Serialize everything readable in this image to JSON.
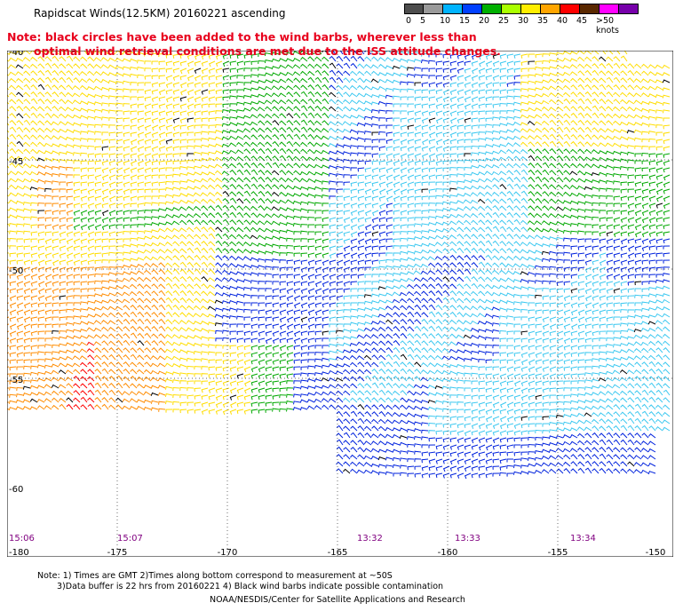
{
  "title": "Rapidscat Winds(12.5KM) 20160221 ascending",
  "note": {
    "line1": "Note: black circles have been added to the wind barbs, wherever less than",
    "line2": "optimal wind retrieval conditions are met due to the ISS attitude changes."
  },
  "legend": {
    "unit": "knots",
    "labels": [
      "0",
      "5",
      "10",
      "15",
      "20",
      "25",
      "30",
      "35",
      "40",
      "45",
      ">50 knots"
    ],
    "colors": [
      "#4d4d4d",
      "#9a9a9a",
      "#00b4ff",
      "#0040ff",
      "#00b000",
      "#aaff00",
      "#ffee00",
      "#ffa500",
      "#ff0000",
      "#5a2800",
      "#ff00ff",
      "#7700aa"
    ]
  },
  "map": {
    "lon_labels": [
      "-180",
      "-175",
      "-170",
      "-165",
      "-160",
      "-155",
      "-150"
    ],
    "lat_labels": [
      "-40",
      "-45",
      "-50",
      "-55",
      "-60"
    ],
    "time_labels": [
      "15:06",
      "15:07",
      "13:32",
      "13:33",
      "13:34"
    ],
    "barb_colors": {
      "calm": "#000000",
      "light": "#3cc8f0",
      "moderate": "#0022dd",
      "fresh": "#00a800",
      "strong": "#ffdd00",
      "gale": "#ff8c00",
      "storm": "#ff0000"
    }
  },
  "footnote": {
    "line1": "Note: 1) Times are GMT 2)Times along bottom correspond to measurement at ~50S",
    "line2": "3)Data buffer is 22 hrs from 20160221 4) Black wind barbs indicate possible contamination"
  },
  "credit": "NOAA/NESDIS/Center for Satellite Applications and Research"
}
